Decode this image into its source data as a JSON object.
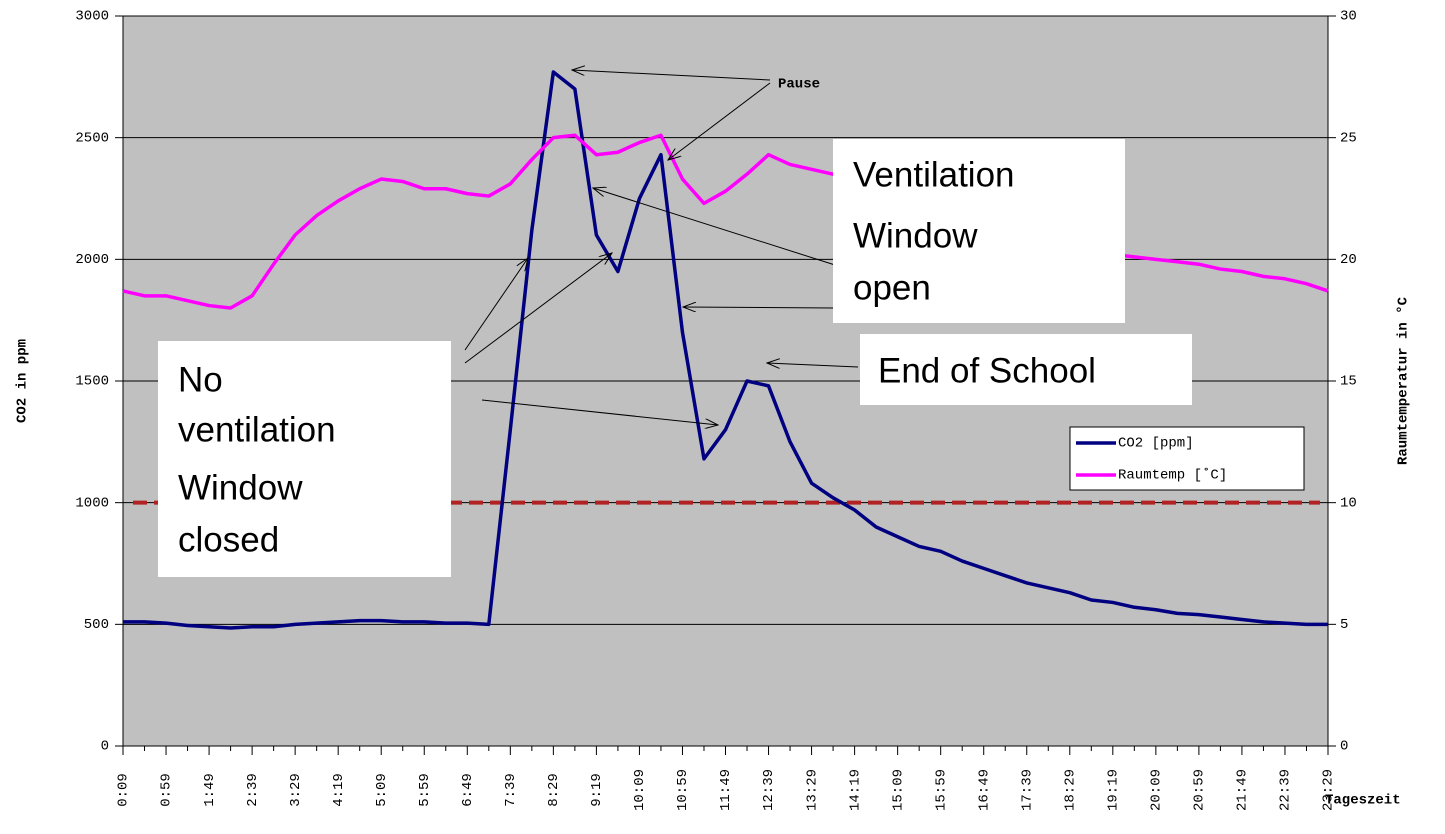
{
  "chart_data": {
    "type": "line",
    "categories": [
      "0:09",
      null,
      "0:59",
      null,
      "1:49",
      null,
      "2:39",
      null,
      "3:29",
      null,
      "4:19",
      null,
      "5:09",
      null,
      "5:59",
      null,
      "6:49",
      null,
      "7:39",
      null,
      "8:29",
      null,
      "9:19",
      null,
      "10:09",
      null,
      "10:59",
      null,
      "11:49",
      null,
      "12:39",
      null,
      "13:29",
      null,
      "14:19",
      null,
      "15:09",
      null,
      "15:59",
      null,
      "16:49",
      null,
      "17:39",
      null,
      "18:29",
      null,
      "19:19",
      null,
      "20:09",
      null,
      "20:59",
      null,
      "21:49",
      null,
      "22:39",
      null,
      "23:29"
    ],
    "series": [
      {
        "name": "CO2 [ppm]",
        "color": "#000080",
        "values": [
          510,
          510,
          505,
          495,
          490,
          485,
          490,
          490,
          500,
          505,
          510,
          515,
          515,
          510,
          510,
          505,
          505,
          500,
          1300,
          2120,
          2770,
          2700,
          2100,
          1950,
          2250,
          2430,
          1700,
          1180,
          1300,
          1500,
          1480,
          1250,
          1080,
          1020,
          970,
          900,
          860,
          820,
          800,
          760,
          730,
          700,
          670,
          650,
          630,
          600,
          590,
          570,
          560,
          545,
          540,
          530,
          520,
          510,
          505,
          500,
          500
        ]
      },
      {
        "name": "Raumtemp [˚C]",
        "color": "#ff00ff",
        "axis": "y2",
        "values": [
          18.7,
          18.5,
          18.5,
          18.3,
          18.1,
          18.0,
          18.5,
          19.8,
          21.0,
          21.8,
          22.4,
          22.9,
          23.3,
          23.2,
          22.9,
          22.9,
          22.7,
          22.6,
          23.1,
          24.1,
          25.0,
          25.1,
          24.3,
          24.4,
          24.8,
          25.1,
          23.3,
          22.3,
          22.8,
          23.5,
          24.3,
          23.9,
          23.7,
          23.5,
          23.3,
          23.0,
          22.7,
          22.4,
          22.1,
          21.8,
          21.5,
          21.2,
          21.0,
          20.8,
          20.6,
          20.4,
          20.2,
          20.1,
          20.0,
          19.9,
          19.8,
          19.6,
          19.5,
          19.3,
          19.2,
          19.0,
          18.7
        ]
      }
    ],
    "ylim": [
      0,
      3000
    ],
    "yticks": [
      0,
      500,
      1000,
      1500,
      2000,
      2500,
      3000
    ],
    "y2lim": [
      0,
      30
    ],
    "y2ticks": [
      0,
      5,
      10,
      15,
      20,
      25,
      30
    ],
    "ylabel": "CO2 in ppm",
    "y2label": "Raumtemperatur in °C",
    "xlabel": "Tageszeit",
    "grid": true,
    "legend": "right",
    "reference_line": {
      "value": 1000,
      "color": "#b22222"
    },
    "annotations": {
      "pause": "Pause",
      "ventilation": [
        "Ventilation",
        "Window",
        "open"
      ],
      "end": "End of School",
      "no_ventilation": [
        "No",
        "ventilation",
        "Window",
        "closed"
      ]
    }
  }
}
